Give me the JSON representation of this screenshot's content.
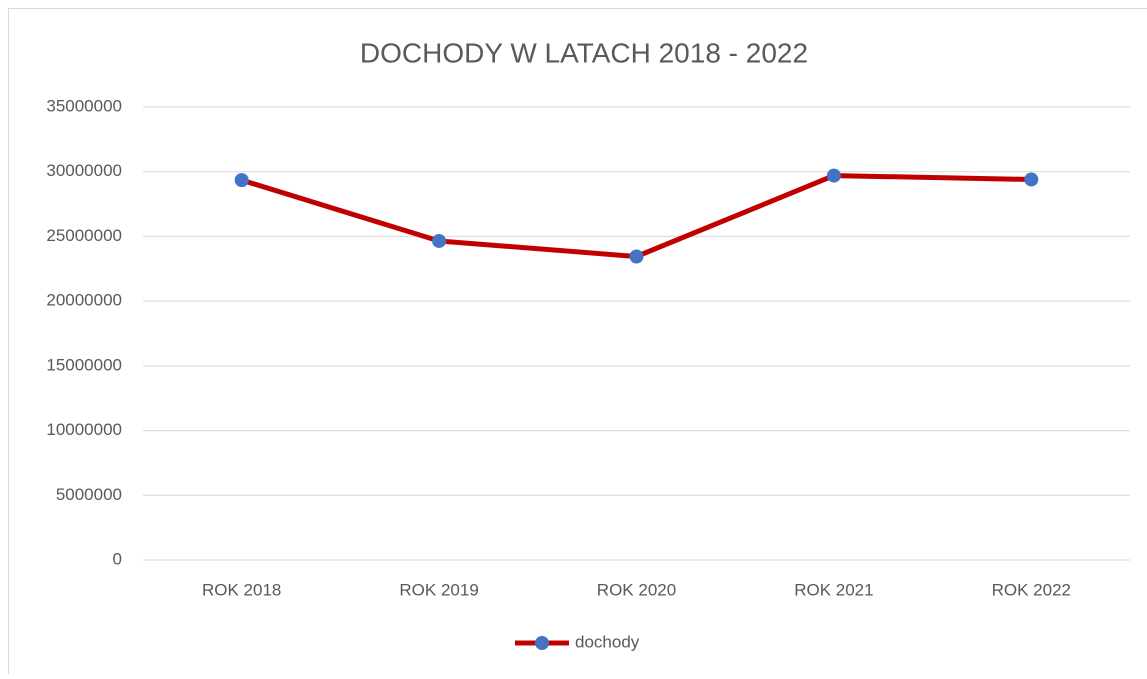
{
  "chart_data": {
    "type": "line",
    "title": "DOCHODY W LATACH 2018 - 2022",
    "categories": [
      "ROK 2018",
      "ROK 2019",
      "ROK 2020",
      "ROK 2021",
      "ROK 2022"
    ],
    "series": [
      {
        "name": "dochody",
        "color": "#c00000",
        "marker_color": "#4472c4",
        "values": [
          29350000,
          24650000,
          23450000,
          29700000,
          29400000
        ]
      }
    ],
    "ylim": [
      0,
      35000000
    ],
    "yticks": [
      0,
      5000000,
      10000000,
      15000000,
      20000000,
      25000000,
      30000000,
      35000000
    ],
    "grid": true,
    "legend": "bottom"
  }
}
